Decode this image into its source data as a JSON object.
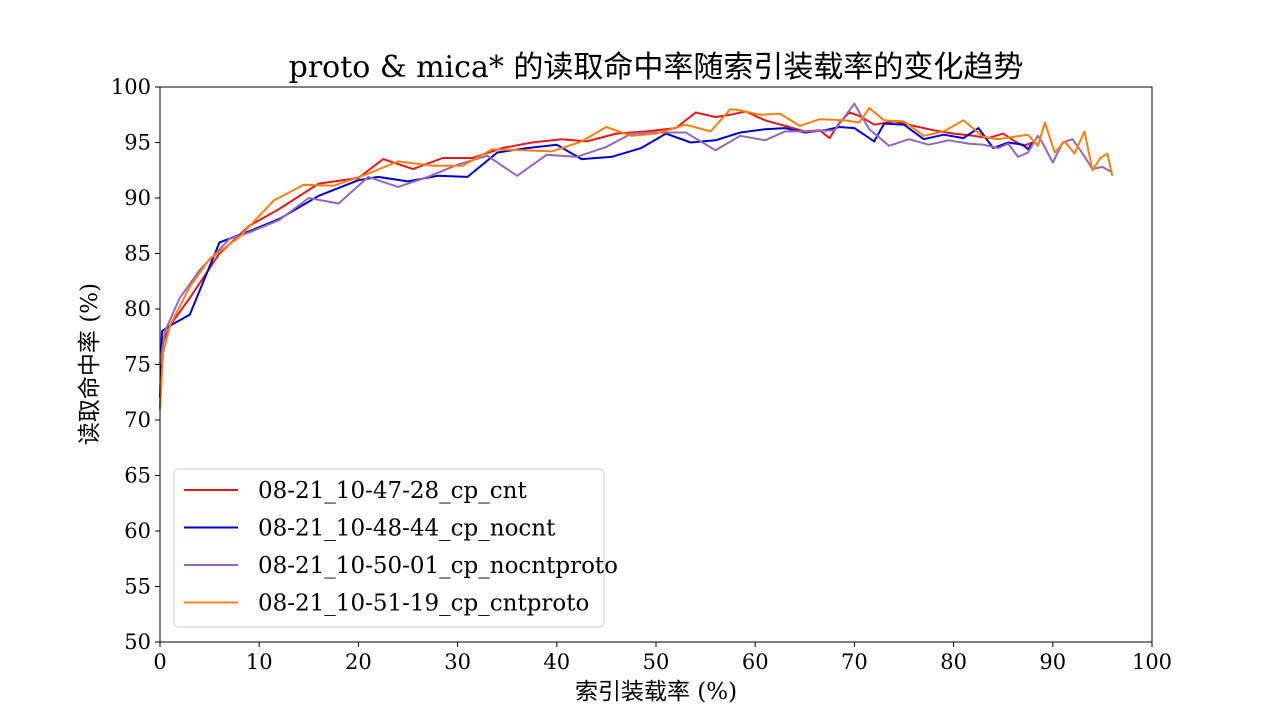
{
  "chart_data": {
    "type": "line",
    "title": "proto & mica* 的读取命中率随索引装载率的变化趋势",
    "xlabel": "索引装载率 (%)",
    "ylabel": "读取命中率 (%)",
    "xlim": [
      0,
      100
    ],
    "ylim": [
      50,
      100
    ],
    "xticks": [
      "0",
      "10",
      "20",
      "30",
      "40",
      "50",
      "60",
      "70",
      "80",
      "90",
      "100"
    ],
    "yticks": [
      "50",
      "55",
      "60",
      "65",
      "70",
      "75",
      "80",
      "85",
      "90",
      "95",
      "100"
    ],
    "grid": false,
    "legend": "lower-left",
    "series": [
      {
        "name": "08-21_10-47-28_cp_cnt",
        "color": "#e31a1c",
        "x": [
          0,
          0.3,
          1,
          3,
          6,
          9,
          12,
          16,
          20,
          22.5,
          25.5,
          28.5,
          31.5,
          34.5,
          37.5,
          40.5,
          43,
          46,
          49,
          52,
          54,
          56,
          57.5,
          59,
          61,
          63,
          65,
          66.5,
          67.5,
          68.5,
          69.5,
          70.5,
          72,
          74,
          76,
          78,
          80,
          82,
          83.5,
          85,
          86,
          87,
          88
        ],
        "y": [
          71,
          77,
          78.5,
          81,
          85,
          87.5,
          89,
          91.3,
          91.8,
          93.5,
          92.6,
          93.6,
          93.6,
          94.5,
          95,
          95.3,
          95.1,
          95.8,
          96,
          96.3,
          97.7,
          97.3,
          97.5,
          97.8,
          97,
          96.5,
          96,
          96.1,
          95.4,
          96.8,
          97.7,
          97.4,
          96.6,
          96.9,
          96.5,
          96.1,
          95.8,
          95.6,
          95.4,
          95.8,
          95.2,
          94.7,
          95
        ]
      },
      {
        "name": "08-21_10-48-44_cp_nocnt",
        "color": "#0000d0",
        "x": [
          0,
          0.2,
          1,
          3,
          6,
          9,
          12,
          16,
          20,
          22,
          25,
          28,
          31,
          34,
          37,
          40,
          42.5,
          45.5,
          48.5,
          51,
          53.5,
          56,
          58.5,
          61,
          63,
          65,
          67,
          68.5,
          70,
          72,
          73,
          75,
          77,
          79,
          81,
          82.5,
          84,
          85.5,
          87,
          87.5,
          88
        ],
        "y": [
          72,
          78,
          78.5,
          79.5,
          86,
          87,
          88.1,
          90.2,
          91.6,
          91.9,
          91.5,
          92,
          91.9,
          94.1,
          94.5,
          94.8,
          93.5,
          93.7,
          94.5,
          95.8,
          95,
          95.2,
          95.9,
          96.2,
          96.3,
          95.9,
          96.1,
          96.4,
          96.3,
          95.1,
          96.7,
          96.6,
          95.3,
          95.7,
          95.4,
          96.3,
          94.5,
          95,
          94.8,
          94.4,
          95
        ]
      },
      {
        "name": "08-21_10-50-01_cp_nocntproto",
        "color": "#9467bd",
        "x": [
          0,
          0.5,
          2,
          4,
          7,
          9,
          12,
          15,
          18,
          21,
          24,
          27,
          30,
          33,
          36,
          39,
          42,
          45,
          47.5,
          50,
          53,
          56,
          58.5,
          61,
          63,
          65.5,
          68,
          70,
          70.5,
          71.5,
          73.5,
          75.5,
          77.5,
          79.5,
          81.5,
          83,
          84.5,
          85.5,
          86.5,
          87.5,
          88.5,
          89,
          90,
          91,
          92,
          93,
          94,
          95,
          96
        ],
        "y": [
          75,
          78,
          81,
          83.5,
          86.3,
          86.9,
          88,
          90,
          89.5,
          91.9,
          91,
          91.9,
          93,
          93.8,
          92,
          93.9,
          93.7,
          94.6,
          95.8,
          95.9,
          95.9,
          94.3,
          95.6,
          95.2,
          96,
          96,
          96.1,
          98.5,
          97.7,
          96.2,
          94.7,
          95.3,
          94.8,
          95.2,
          94.9,
          94.8,
          94.5,
          94.9,
          93.7,
          94.1,
          95.6,
          94.9,
          93.2,
          95,
          95.3,
          94,
          92.6,
          92.8,
          92.3
        ]
      },
      {
        "name": "08-21_10-51-19_cp_cntproto",
        "color": "#ff7f0e",
        "x": [
          0,
          0.3,
          1,
          3,
          5,
          8,
          11.5,
          14.5,
          17.5,
          21,
          24,
          27.5,
          30.5,
          33.5,
          36.5,
          39.5,
          42.5,
          45,
          47.5,
          50,
          53,
          55.5,
          57.5,
          58.5,
          60.5,
          62.5,
          64.5,
          66.5,
          69,
          70.5,
          71.5,
          73,
          75,
          77,
          79,
          81,
          83,
          84.5,
          86,
          87.5,
          88.5,
          89.2,
          90.2,
          91.2,
          92.2,
          93.2,
          94,
          94.8,
          95.5,
          96
        ],
        "y": [
          71,
          76,
          78.5,
          82,
          84.5,
          86.5,
          89.8,
          91.2,
          91.1,
          92.2,
          93.3,
          92.9,
          92.9,
          94.4,
          94.3,
          94.2,
          95.1,
          96.4,
          95.6,
          95.8,
          96.6,
          96,
          98,
          97.9,
          97.5,
          97.6,
          96.5,
          97.1,
          97,
          96.8,
          98.1,
          97,
          96.9,
          95.6,
          96,
          97,
          95.5,
          95.3,
          95.5,
          95.7,
          94.7,
          96.8,
          94.1,
          95.1,
          94,
          96,
          92.5,
          93.6,
          94,
          92
        ]
      }
    ]
  }
}
